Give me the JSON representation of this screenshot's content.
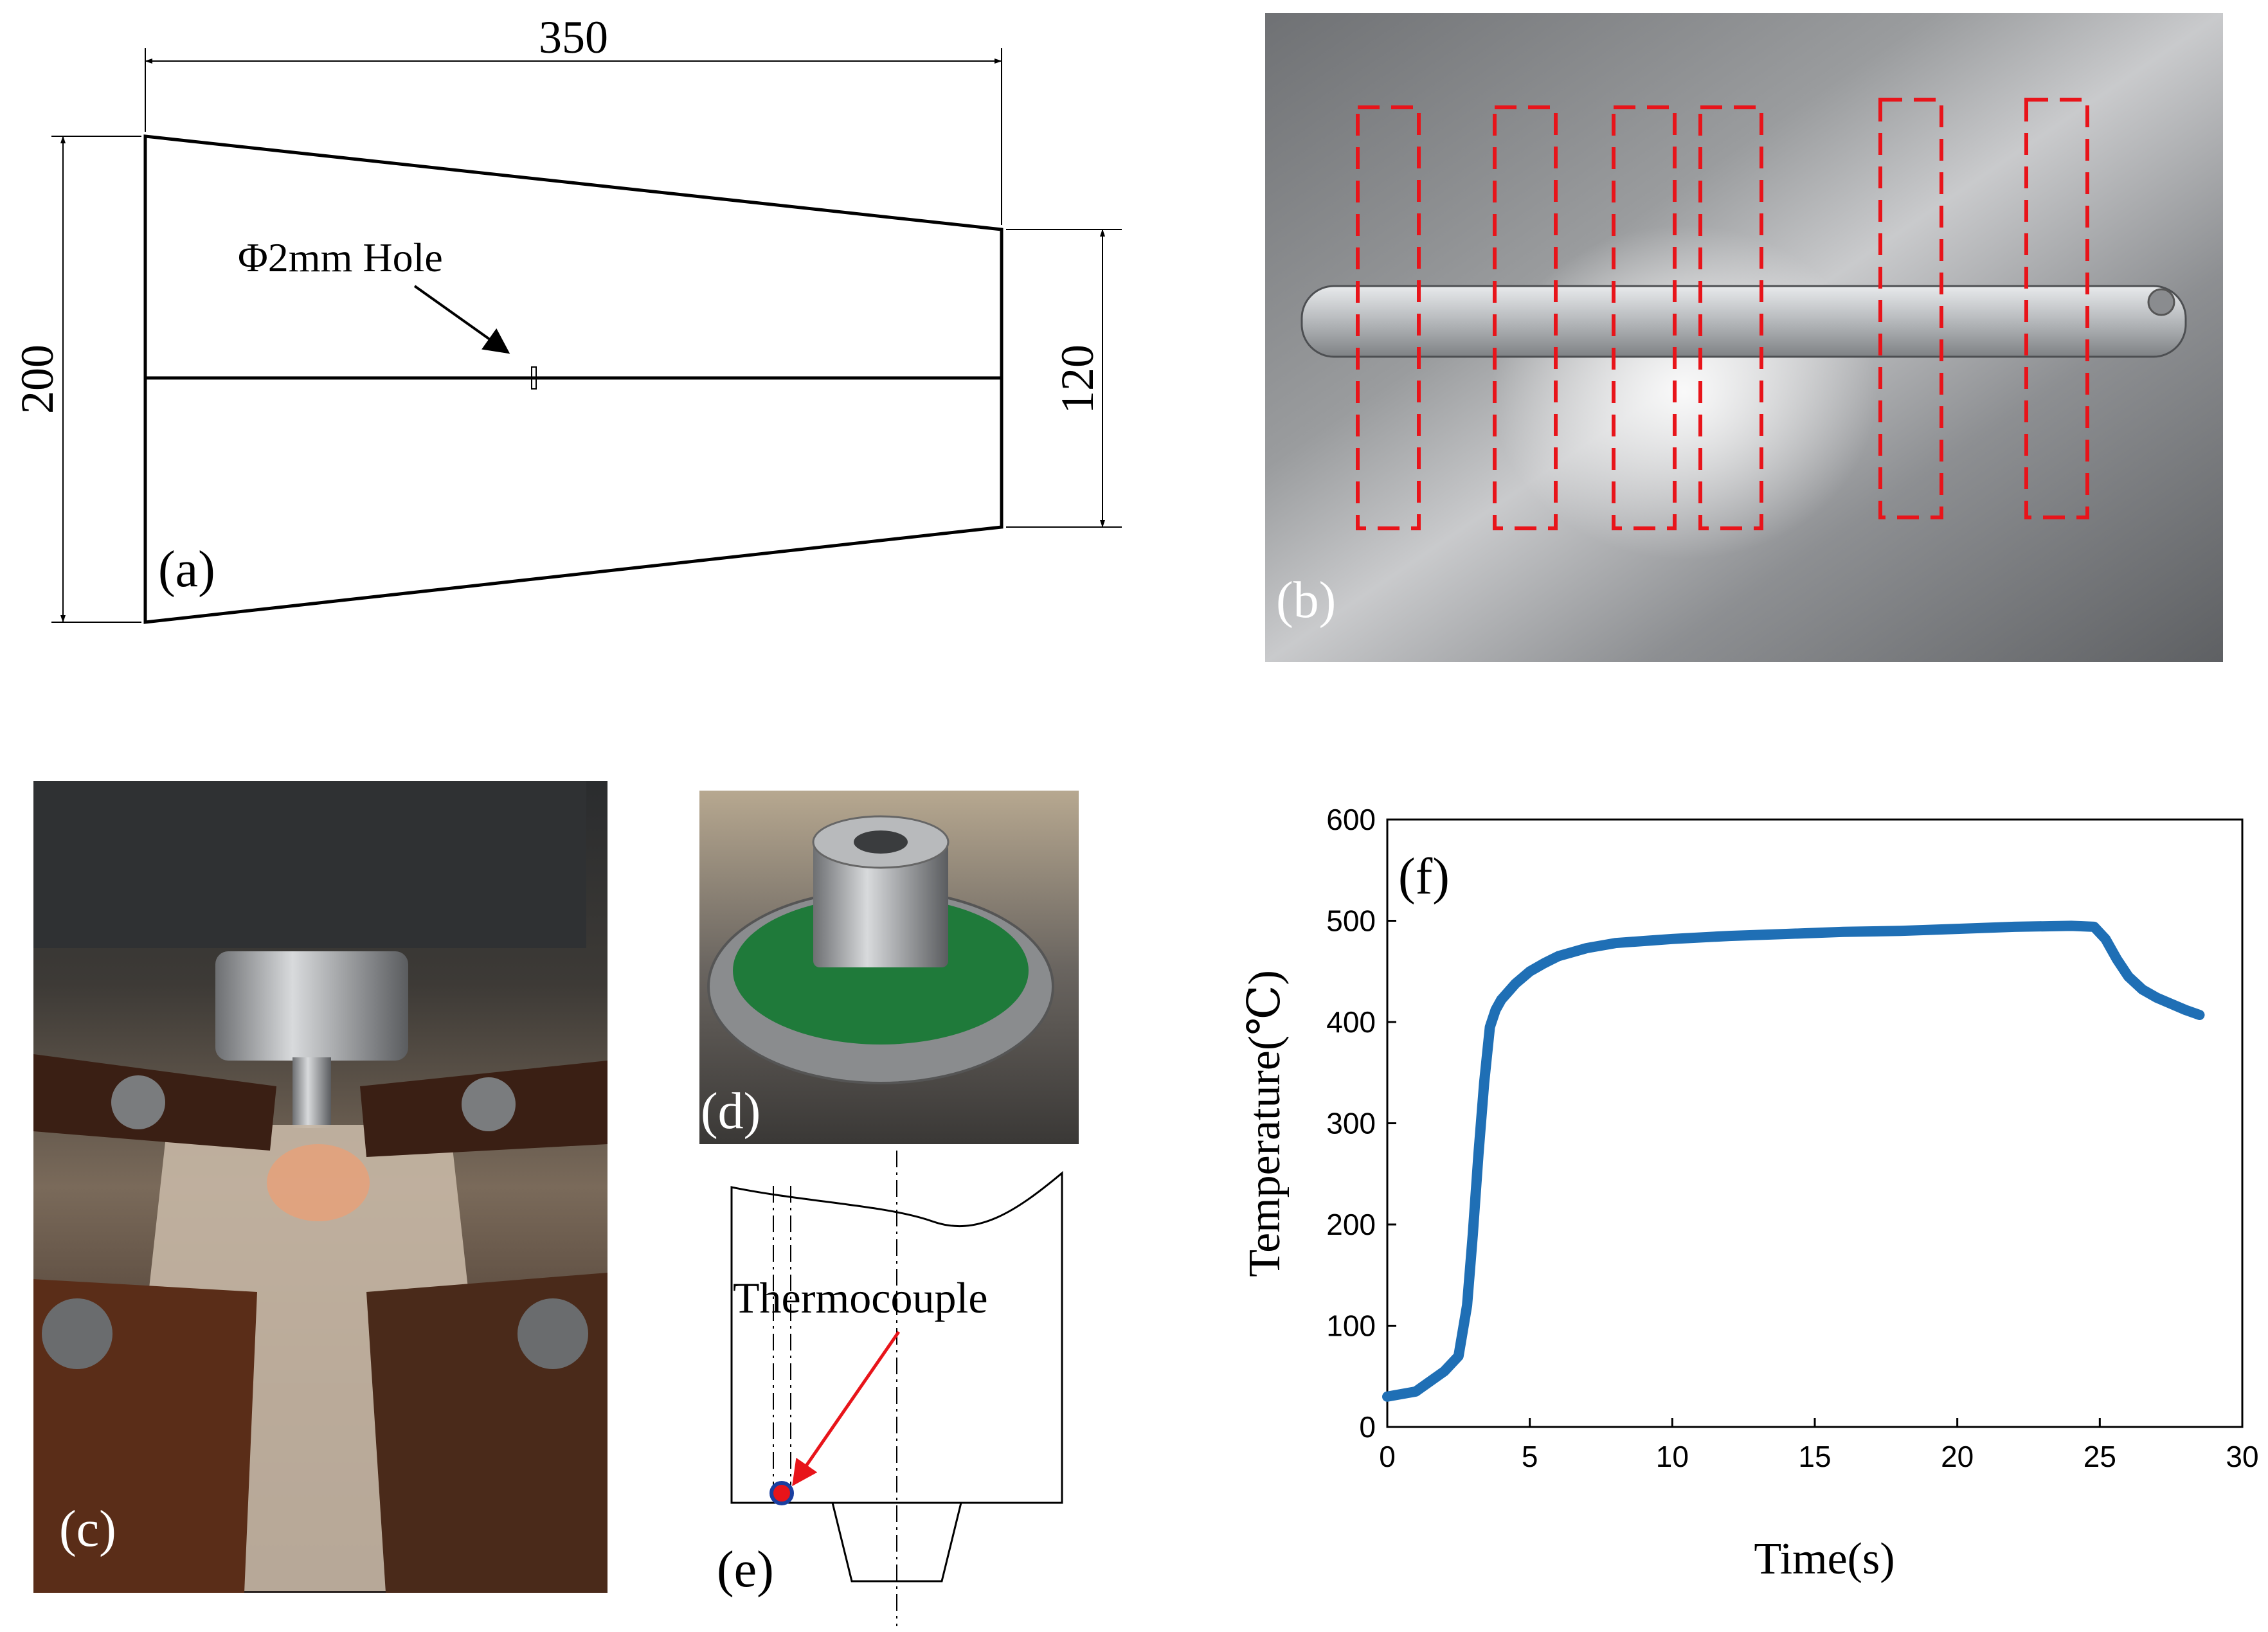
{
  "panels": {
    "a": {
      "label": "(a)",
      "dim_width": "350",
      "dim_height_left": "200",
      "dim_height_right": "120",
      "hole_text": "Φ2mm Hole"
    },
    "b": {
      "label": "(b)",
      "box_color": "#e8141a"
    },
    "c": {
      "label": "(c)"
    },
    "d": {
      "label": "(d)"
    },
    "e": {
      "label": "(e)",
      "thermocouple_text": "Thermocouple",
      "arrow_color": "#e8141a"
    },
    "f": {
      "label": "(f)"
    }
  },
  "chart_data": {
    "type": "line",
    "ylabel": "Temperature(℃)",
    "xlabel": "Time(s)",
    "xlim": [
      0,
      30
    ],
    "ylim": [
      0,
      600
    ],
    "xticks": [
      "0",
      "5",
      "10",
      "15",
      "20",
      "25",
      "30"
    ],
    "yticks": [
      "0",
      "100",
      "200",
      "300",
      "400",
      "500",
      "600"
    ],
    "grid": false,
    "line_color": "#1f6fb5",
    "series": [
      {
        "x": [
          0,
          1,
          1.5,
          2,
          2.5,
          2.8,
          3.0,
          3.2,
          3.4,
          3.6,
          3.8,
          4.0,
          4.5,
          5,
          5.5,
          6,
          7,
          8,
          9,
          10,
          12,
          14,
          16,
          18,
          20,
          22,
          24,
          24.8,
          25.2,
          25.6,
          26,
          26.5,
          27,
          27.5,
          28,
          28.5
        ],
        "y": [
          30,
          35,
          45,
          55,
          70,
          120,
          190,
          270,
          340,
          395,
          412,
          422,
          438,
          450,
          458,
          465,
          473,
          478,
          480,
          482,
          485,
          487,
          489,
          490,
          492,
          494,
          495,
          494,
          482,
          462,
          445,
          432,
          424,
          418,
          412,
          407
        ]
      }
    ]
  }
}
